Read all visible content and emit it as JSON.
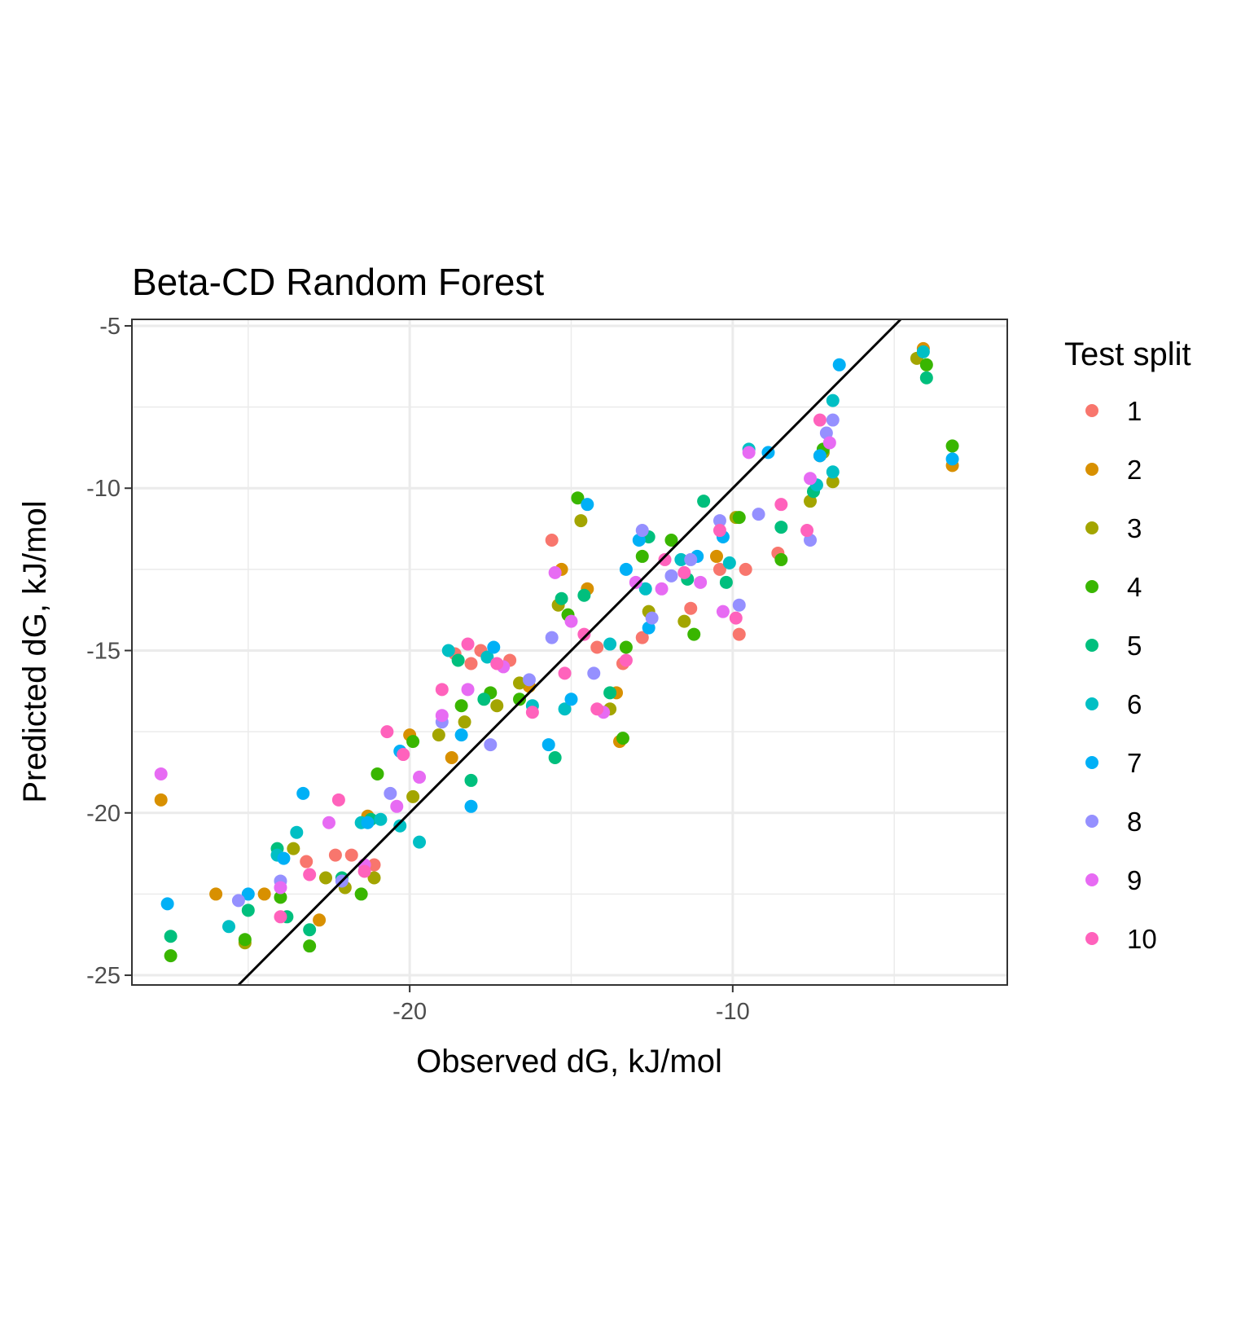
{
  "chart_data": {
    "type": "scatter",
    "title": "Beta-CD Random Forest",
    "xlabel": "Observed dG, kJ/mol",
    "ylabel": "Predicted dG, kJ/mol",
    "xlim": [
      -28.6,
      -1.5
    ],
    "ylim": [
      -25.3,
      -4.8
    ],
    "x_ticks": [
      -20,
      -10
    ],
    "y_ticks": [
      -25,
      -20,
      -15,
      -10,
      -5
    ],
    "x_tick_labels": [
      "-20",
      "-10"
    ],
    "y_tick_labels": [
      "-25",
      "-20",
      "-15",
      "-10",
      "-5"
    ],
    "grid": true,
    "reference_line": {
      "type": "identity",
      "slope": 1,
      "intercept": 0,
      "color": "#000000"
    },
    "legend": {
      "title": "Test split",
      "position": "right",
      "labels": [
        "1",
        "2",
        "3",
        "4",
        "5",
        "6",
        "7",
        "8",
        "9",
        "10"
      ]
    },
    "series": [
      {
        "name": "1",
        "color": "#F8766D",
        "x": [
          -23.2,
          -22.3,
          -21.8,
          -21.1,
          -18.6,
          -18.1,
          -17.8,
          -16.9,
          -15.6,
          -14.2,
          -13.4,
          -12.8,
          -11.3,
          -10.4,
          -9.8,
          -9.6,
          -8.6
        ],
        "y": [
          -21.5,
          -21.3,
          -21.3,
          -21.6,
          -15.1,
          -15.4,
          -15.0,
          -15.3,
          -11.6,
          -14.9,
          -15.4,
          -14.6,
          -13.7,
          -12.5,
          -14.5,
          -12.5,
          -12.0
        ]
      },
      {
        "name": "2",
        "color": "#D89000",
        "x": [
          -27.7,
          -26.0,
          -24.5,
          -22.8,
          -21.3,
          -20.0,
          -18.7,
          -16.3,
          -15.3,
          -14.5,
          -13.6,
          -13.5,
          -10.5,
          -7.3,
          -4.1,
          -3.2
        ],
        "y": [
          -19.6,
          -22.5,
          -22.5,
          -23.3,
          -20.1,
          -17.6,
          -18.3,
          -16.1,
          -12.5,
          -13.1,
          -16.3,
          -17.8,
          -12.1,
          -9.0,
          -5.7,
          -9.3
        ]
      },
      {
        "name": "3",
        "color": "#A3A500",
        "x": [
          -25.1,
          -23.6,
          -22.6,
          -22.0,
          -21.1,
          -19.9,
          -19.1,
          -18.3,
          -17.3,
          -16.6,
          -15.4,
          -14.7,
          -13.8,
          -12.6,
          -11.5,
          -9.9,
          -7.6,
          -7.2,
          -6.9,
          -4.3
        ],
        "y": [
          -24.0,
          -21.1,
          -22.0,
          -22.3,
          -22.0,
          -19.5,
          -17.6,
          -17.2,
          -16.7,
          -16.0,
          -13.6,
          -11.0,
          -16.8,
          -13.8,
          -14.1,
          -10.9,
          -10.4,
          -8.9,
          -9.8,
          -6.0
        ]
      },
      {
        "name": "4",
        "color": "#39B600",
        "x": [
          -27.4,
          -25.1,
          -24.0,
          -23.1,
          -21.5,
          -21.0,
          -19.9,
          -18.4,
          -17.5,
          -16.6,
          -15.1,
          -14.8,
          -13.4,
          -13.3,
          -12.8,
          -11.9,
          -11.2,
          -9.8,
          -8.5,
          -7.2,
          -4.0,
          -3.2
        ],
        "y": [
          -24.4,
          -23.9,
          -22.6,
          -24.1,
          -22.5,
          -18.8,
          -17.8,
          -16.7,
          -16.3,
          -16.5,
          -13.9,
          -10.3,
          -17.7,
          -14.9,
          -12.1,
          -11.6,
          -14.5,
          -10.9,
          -12.2,
          -8.8,
          -6.2,
          -8.7
        ]
      },
      {
        "name": "5",
        "color": "#00BF7D",
        "x": [
          -27.4,
          -25.0,
          -24.1,
          -23.8,
          -23.1,
          -22.1,
          -21.2,
          -18.5,
          -18.1,
          -17.7,
          -15.5,
          -15.3,
          -14.6,
          -13.8,
          -12.6,
          -11.4,
          -10.9,
          -10.2,
          -8.5,
          -7.5,
          -4.0
        ],
        "y": [
          -23.8,
          -23.0,
          -21.1,
          -23.2,
          -23.6,
          -22.0,
          -20.2,
          -15.3,
          -19.0,
          -16.5,
          -18.3,
          -13.4,
          -13.3,
          -16.3,
          -11.5,
          -12.8,
          -10.4,
          -12.9,
          -11.2,
          -10.1,
          -6.6
        ]
      },
      {
        "name": "6",
        "color": "#00BFC4",
        "x": [
          -25.6,
          -24.1,
          -23.5,
          -21.5,
          -20.9,
          -20.3,
          -19.7,
          -18.8,
          -17.6,
          -16.2,
          -15.2,
          -13.8,
          -12.7,
          -11.6,
          -10.1,
          -9.5,
          -7.4,
          -6.9,
          -6.9,
          -4.1
        ],
        "y": [
          -23.5,
          -21.3,
          -20.6,
          -20.3,
          -20.2,
          -20.4,
          -20.9,
          -15.0,
          -15.2,
          -16.7,
          -16.8,
          -14.8,
          -13.1,
          -12.2,
          -12.3,
          -8.8,
          -9.9,
          -7.3,
          -9.5,
          -5.8
        ]
      },
      {
        "name": "7",
        "color": "#00B0F6",
        "x": [
          -27.5,
          -25.0,
          -23.9,
          -23.3,
          -21.3,
          -20.3,
          -18.4,
          -18.1,
          -17.4,
          -15.7,
          -15.0,
          -14.5,
          -13.3,
          -12.9,
          -12.6,
          -11.1,
          -10.3,
          -8.9,
          -7.3,
          -6.7,
          -3.2
        ],
        "y": [
          -22.8,
          -22.5,
          -21.4,
          -19.4,
          -20.3,
          -18.1,
          -17.6,
          -19.8,
          -14.9,
          -17.9,
          -16.5,
          -10.5,
          -12.5,
          -11.6,
          -14.3,
          -12.1,
          -11.5,
          -8.9,
          -9.0,
          -6.2,
          -9.1
        ]
      },
      {
        "name": "8",
        "color": "#9590FF",
        "x": [
          -25.3,
          -24.0,
          -22.1,
          -20.6,
          -19.0,
          -17.5,
          -16.3,
          -15.6,
          -14.3,
          -12.8,
          -12.5,
          -11.9,
          -11.3,
          -10.4,
          -9.8,
          -9.2,
          -7.6,
          -7.1,
          -6.9
        ],
        "y": [
          -22.7,
          -22.1,
          -22.1,
          -19.4,
          -17.2,
          -17.9,
          -15.9,
          -14.6,
          -15.7,
          -11.3,
          -14.0,
          -12.7,
          -12.2,
          -11.0,
          -13.6,
          -10.8,
          -11.6,
          -8.3,
          -7.9
        ]
      },
      {
        "name": "9",
        "color": "#E76BF3",
        "x": [
          -27.7,
          -24.0,
          -22.5,
          -21.4,
          -20.4,
          -19.7,
          -19.0,
          -18.2,
          -17.1,
          -15.5,
          -15.0,
          -14.0,
          -13.0,
          -12.2,
          -11.0,
          -10.3,
          -9.5,
          -7.6,
          -7.0
        ],
        "y": [
          -18.8,
          -22.3,
          -20.3,
          -21.6,
          -19.8,
          -18.9,
          -17.0,
          -16.2,
          -15.5,
          -12.6,
          -14.1,
          -16.9,
          -12.9,
          -13.1,
          -12.9,
          -13.8,
          -8.9,
          -9.7,
          -8.6
        ]
      },
      {
        "name": "10",
        "color": "#FF62BC",
        "x": [
          -24.0,
          -23.1,
          -22.2,
          -21.4,
          -20.7,
          -20.2,
          -19.0,
          -18.2,
          -17.3,
          -16.2,
          -15.2,
          -14.6,
          -14.2,
          -13.3,
          -12.1,
          -11.5,
          -10.4,
          -9.9,
          -8.5,
          -7.7,
          -7.3
        ],
        "y": [
          -23.2,
          -21.9,
          -19.6,
          -21.8,
          -17.5,
          -18.2,
          -16.2,
          -14.8,
          -15.4,
          -16.9,
          -15.7,
          -14.5,
          -16.8,
          -15.3,
          -12.2,
          -12.6,
          -11.3,
          -14.0,
          -10.5,
          -11.3,
          -7.9
        ]
      }
    ]
  }
}
